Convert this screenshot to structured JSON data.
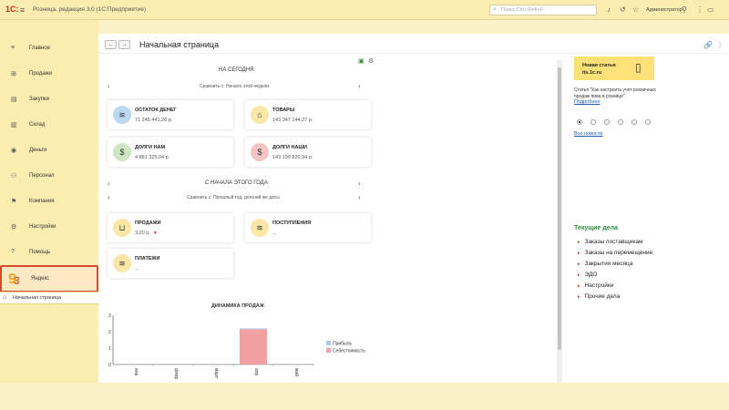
{
  "topbar": {
    "logo": "1С:",
    "app_title": "Розница, редакция 3.0  (1С:Предприятие)",
    "search_placeholder": "Поиск Ctrl+Shift+F",
    "user": "Администратор"
  },
  "sidebar": {
    "items": [
      {
        "label": "Главное",
        "icon": "menu-lines-icon"
      },
      {
        "label": "Продажи",
        "icon": "cart-icon"
      },
      {
        "label": "Закупки",
        "icon": "purchase-icon"
      },
      {
        "label": "Склад",
        "icon": "warehouse-icon"
      },
      {
        "label": "Деньги",
        "icon": "money-icon"
      },
      {
        "label": "Персонал",
        "icon": "staff-icon"
      },
      {
        "label": "Компания",
        "icon": "flag-icon"
      },
      {
        "label": "Настройки",
        "icon": "gear-icon"
      },
      {
        "label": "Помощь",
        "icon": "help-icon"
      },
      {
        "label": "Яндекс",
        "icon": "yandex-logo",
        "active": true
      }
    ],
    "open_tab": "Начальная страница"
  },
  "page": {
    "title": "Начальная страница",
    "back": "←",
    "forward": "→"
  },
  "today": {
    "title": "НА СЕГОДНЯ",
    "compare": "Сравнить с: Начало этой недели",
    "cards": [
      {
        "title": "ОСТАТОК ДЕНЕГ",
        "value": "71 245 441,28 р."
      },
      {
        "title": "ТОВАРЫ",
        "value": "143 347 144,27 р."
      },
      {
        "title": "ДОЛГИ НАМ",
        "value": "4 881 325,04 р."
      },
      {
        "title": "ДОЛГИ НАШИ",
        "value": "143 199 820,94 р."
      }
    ]
  },
  "year": {
    "title": "С НАЧАЛА ЭТОГО ГОДА",
    "compare": "Сравнить с: Прошлый год, догоний же даты",
    "cards": [
      {
        "title": "ПРОДАЖИ",
        "value": "3,20 р.",
        "marker": "▼"
      },
      {
        "title": "ПОСТУПЛЕНИЯ",
        "value": "..."
      },
      {
        "title": "ПЛАТЕЖИ",
        "value": "..."
      }
    ]
  },
  "chart_data": {
    "type": "bar",
    "title": "ДИНАМИКА ПРОДАЖ",
    "categories": [
      "янв",
      "февр",
      "март",
      "апр",
      "май"
    ],
    "series": [
      {
        "name": "Прибыль",
        "values": [
          0,
          0,
          0,
          0.05,
          0
        ],
        "color": "#a8cde8"
      },
      {
        "name": "Себестоимость",
        "values": [
          0,
          0,
          0,
          2.15,
          0
        ],
        "color": "#f2a0a0"
      }
    ],
    "ylim": [
      0,
      3
    ],
    "yticks": [
      0,
      1,
      2,
      3
    ],
    "stacked": true,
    "legend": "right"
  },
  "news": {
    "box_line1": "Новая статья",
    "box_line2": "its.1c.ru",
    "text": "Статья \"Как настроить учет розничных продаж пива в рознице\"",
    "link": "Подробнее",
    "all_news": "Все новости"
  },
  "tasks": {
    "title": "Текущие дела",
    "items": [
      "Заказы поставщикам",
      "Заказы на перемещение",
      "Закрытия месяца",
      "ЭДО",
      "Настройки",
      "Прочие дела"
    ]
  }
}
